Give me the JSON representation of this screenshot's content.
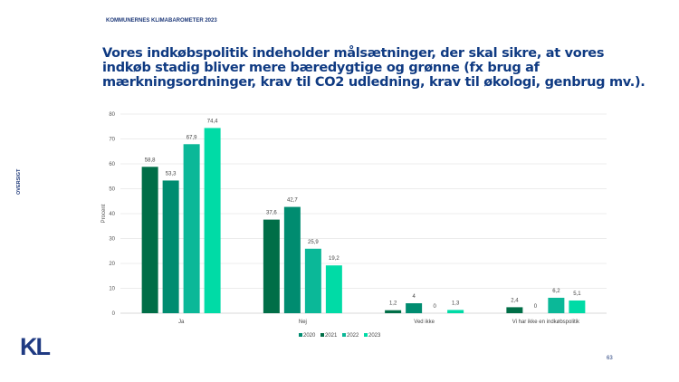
{
  "header": "KOMMUNERNES KLIMABAROMETER 2023",
  "side_label": "OVERSIGT",
  "logo": "KL",
  "page_number": "63",
  "chart_data": {
    "type": "bar",
    "title": "Vores indkøbspolitik indeholder målsætninger, der skal sikre, at vores indkøb stadig bliver mere bæredygtige og grønne (fx brug af mærkningsordninger, krav til CO2 udledning, krav til økologi, genbrug mv.).",
    "ylabel": "Procent",
    "xlabel": "",
    "ylim": [
      0,
      80
    ],
    "yticks": [
      0,
      10,
      20,
      30,
      40,
      50,
      60,
      70,
      80
    ],
    "categories": [
      "Ja",
      "Nej",
      "Ved ikke",
      "Vi har ikke en indkøbspolitik"
    ],
    "series": [
      {
        "name": "2021",
        "color": "#006e47",
        "values": [
          58.8,
          37.6,
          1.2,
          2.4
        ]
      },
      {
        "name": "2020",
        "color": "#008c70",
        "values": [
          53.3,
          42.7,
          4,
          0
        ]
      },
      {
        "name": "2022",
        "color": "#0bb898",
        "values": [
          67.9,
          25.9,
          0,
          6.2
        ]
      },
      {
        "name": "2023",
        "color": "#00dba6",
        "values": [
          74.4,
          19.2,
          1.3,
          5.1
        ]
      }
    ],
    "grid": true,
    "legend": "bottom"
  }
}
